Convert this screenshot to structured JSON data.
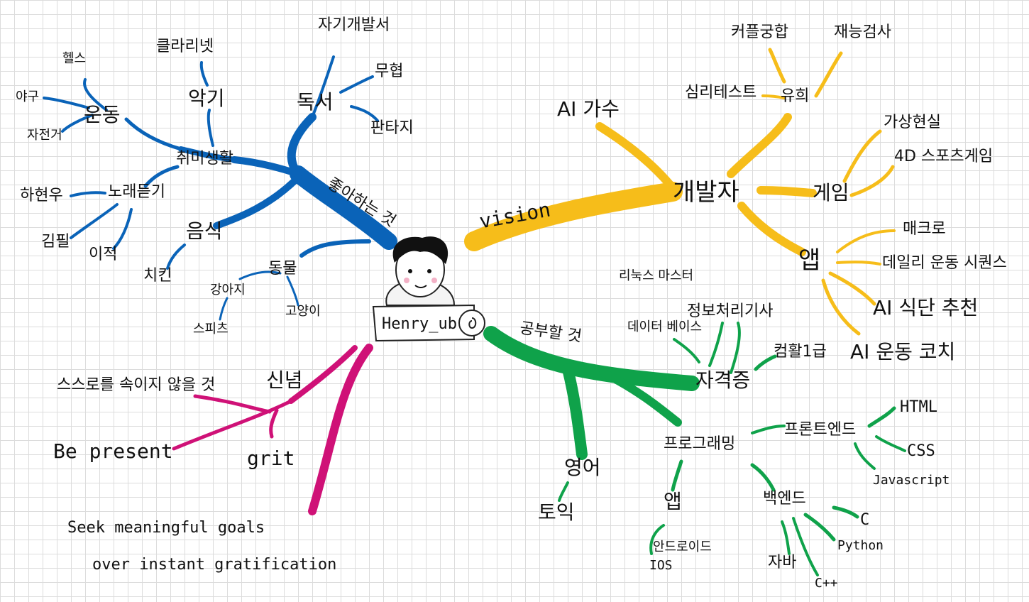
{
  "center": {
    "name_tag": "Henry_ub"
  },
  "colors": {
    "likes": "#0a63b8",
    "vision": "#f6bd1a",
    "study": "#0fa24a",
    "belief": "#cf1177"
  },
  "likes": {
    "main": "좋아하는 것",
    "hobby": "취미생활",
    "exercise": "운동",
    "health": "헬스",
    "baseball": "야구",
    "bike": "자전거",
    "instrument": "악기",
    "clarinet": "클라리넷",
    "reading": "독서",
    "selfhelp": "자기개발서",
    "martial": "무협",
    "fantasy": "판타지",
    "music": "노래듣기",
    "ha_hyunwoo": "하현우",
    "kim_pil": "김필",
    "lee_juk": "이적",
    "food": "음식",
    "chicken": "치킨",
    "animal": "동물",
    "puppy": "강아지",
    "spitz": "스피츠",
    "cat": "고양이"
  },
  "vision": {
    "main": "vision",
    "developer": "개발자",
    "ai_singer": "AI 가수",
    "fun": "유희",
    "psych_test": "심리테스트",
    "couple": "커플궁합",
    "talent": "재능검사",
    "game": "게임",
    "vr": "가상현실",
    "sports4d": "4D 스포츠게임",
    "app": "앱",
    "macro": "매크로",
    "daily_ex": "데일리 운동 시퀀스",
    "ai_diet": "AI 식단 추천",
    "ai_coach": "AI 운동 코치"
  },
  "study": {
    "main": "공부할 것",
    "cert": "자격증",
    "linux": "리눅스 마스터",
    "info": "정보처리기사",
    "db": "데이터 베이스",
    "computer": "컴활1급",
    "english": "영어",
    "toeic": "토익",
    "programming": "프로그래밍",
    "frontend": "프론트엔드",
    "html": "HTML",
    "css": "CSS",
    "js": "Javascript",
    "backend": "백엔드",
    "c": "C",
    "python": "Python",
    "java": "자바",
    "cpp": "C++",
    "app": "앱",
    "android": "안드로이드",
    "ios": "IOS"
  },
  "belief": {
    "main": "신념",
    "no_deceive": "스스로를 속이지 않을 것",
    "present": "Be present",
    "grit": "grit",
    "goals_line1": "Seek meaningful goals",
    "goals_line2": "over instant gratification"
  }
}
